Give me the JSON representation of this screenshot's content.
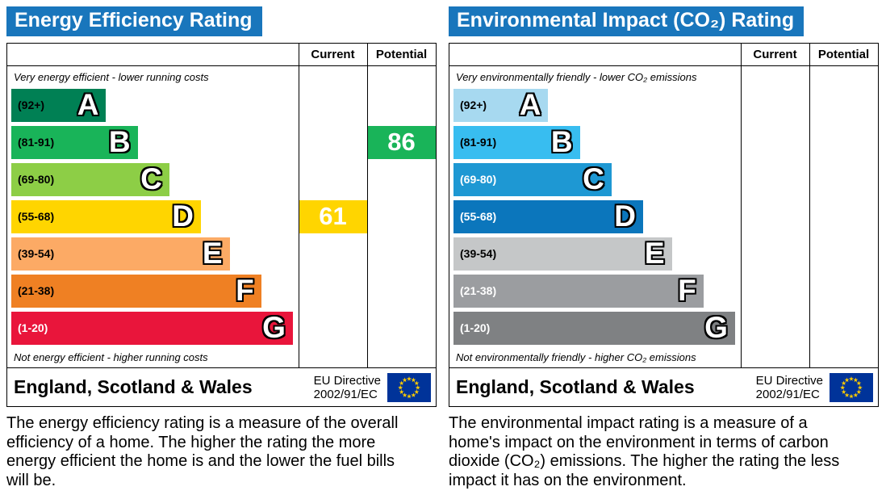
{
  "chart_data": [
    {
      "type": "bar",
      "title": "Energy Efficiency Rating",
      "categories": [
        "A",
        "B",
        "C",
        "D",
        "E",
        "F",
        "G"
      ],
      "band_ranges": [
        "92+",
        "81-91",
        "69-80",
        "55-68",
        "39-54",
        "21-38",
        "1-20"
      ],
      "band_colors": [
        "#008054",
        "#19b459",
        "#8dce46",
        "#ffd500",
        "#fcaa65",
        "#ef8023",
        "#e9153b"
      ],
      "series": [
        {
          "name": "Current",
          "value": 61,
          "band": "D"
        },
        {
          "name": "Potential",
          "value": 86,
          "band": "B"
        }
      ],
      "scale": [
        1,
        100
      ],
      "legend_position": "none"
    },
    {
      "type": "bar",
      "title": "Environmental Impact (CO₂) Rating",
      "categories": [
        "A",
        "B",
        "C",
        "D",
        "E",
        "F",
        "G"
      ],
      "band_ranges": [
        "92+",
        "81-91",
        "69-80",
        "55-68",
        "39-54",
        "21-38",
        "1-20"
      ],
      "band_colors": [
        "#a7d9f0",
        "#38bdf0",
        "#1e98d3",
        "#0b76bc",
        "#c5c7c8",
        "#9b9da0",
        "#7f8183"
      ],
      "series": [
        {
          "name": "Current",
          "value": null,
          "band": null
        },
        {
          "name": "Potential",
          "value": null,
          "band": null
        }
      ],
      "scale": [
        1,
        100
      ],
      "legend_position": "none"
    }
  ],
  "colors": {
    "title_bar_bg": "#1976bc",
    "title_text": "#ffffff",
    "eu_flag_bg": "#003399",
    "eu_flag_stars": "#ffcc00"
  },
  "panels": [
    {
      "title": "Energy Efficiency Rating",
      "columns": {
        "current": "Current",
        "potential": "Potential"
      },
      "top_note": "Very energy efficient - lower running costs",
      "bottom_note": "Not energy efficient - higher running costs",
      "bands": [
        {
          "range": "(92+)",
          "letter": "A",
          "color": "#008054",
          "width_pct": 33,
          "label_color": "#000000"
        },
        {
          "range": "(81-91)",
          "letter": "B",
          "color": "#19b459",
          "width_pct": 44,
          "label_color": "#000000"
        },
        {
          "range": "(69-80)",
          "letter": "C",
          "color": "#8dce46",
          "width_pct": 55,
          "label_color": "#000000"
        },
        {
          "range": "(55-68)",
          "letter": "D",
          "color": "#ffd500",
          "width_pct": 66,
          "label_color": "#000000"
        },
        {
          "range": "(39-54)",
          "letter": "E",
          "color": "#fcaa65",
          "width_pct": 76,
          "label_color": "#000000"
        },
        {
          "range": "(21-38)",
          "letter": "F",
          "color": "#ef8023",
          "width_pct": 87,
          "label_color": "#000000"
        },
        {
          "range": "(1-20)",
          "letter": "G",
          "color": "#e9153b",
          "width_pct": 98,
          "label_color": "#ffffff"
        }
      ],
      "current": {
        "value": "61",
        "band": "D",
        "color": "#ffd500"
      },
      "potential": {
        "value": "86",
        "band": "B",
        "color": "#19b459"
      },
      "footer": {
        "region": "England, Scotland & Wales",
        "directive_line1": "EU Directive",
        "directive_line2": "2002/91/EC"
      },
      "description": "The energy efficiency rating is a measure of the overall efficiency of a home. The higher the rating the more energy efficient the home is and the lower the fuel bills will be."
    },
    {
      "title": "Environmental Impact (CO₂) Rating",
      "columns": {
        "current": "Current",
        "potential": "Potential"
      },
      "top_note": "Very environmentally friendly - lower CO₂ emissions",
      "bottom_note": "Not environmentally friendly - higher CO₂ emissions",
      "bands": [
        {
          "range": "(92+)",
          "letter": "A",
          "color": "#a7d9f0",
          "width_pct": 33,
          "label_color": "#000000"
        },
        {
          "range": "(81-91)",
          "letter": "B",
          "color": "#38bdf0",
          "width_pct": 44,
          "label_color": "#000000"
        },
        {
          "range": "(69-80)",
          "letter": "C",
          "color": "#1e98d3",
          "width_pct": 55,
          "label_color": "#ffffff"
        },
        {
          "range": "(55-68)",
          "letter": "D",
          "color": "#0b76bc",
          "width_pct": 66,
          "label_color": "#ffffff"
        },
        {
          "range": "(39-54)",
          "letter": "E",
          "color": "#c5c7c8",
          "width_pct": 76,
          "label_color": "#000000"
        },
        {
          "range": "(21-38)",
          "letter": "F",
          "color": "#9b9da0",
          "width_pct": 87,
          "label_color": "#ffffff"
        },
        {
          "range": "(1-20)",
          "letter": "G",
          "color": "#7f8183",
          "width_pct": 98,
          "label_color": "#ffffff"
        }
      ],
      "current": null,
      "potential": null,
      "footer": {
        "region": "England, Scotland & Wales",
        "directive_line1": "EU Directive",
        "directive_line2": "2002/91/EC"
      },
      "description": "The environmental impact rating is a measure of a home's impact on the environment in terms of carbon dioxide (CO₂) emissions. The higher the rating the less impact it has on the environment."
    }
  ]
}
